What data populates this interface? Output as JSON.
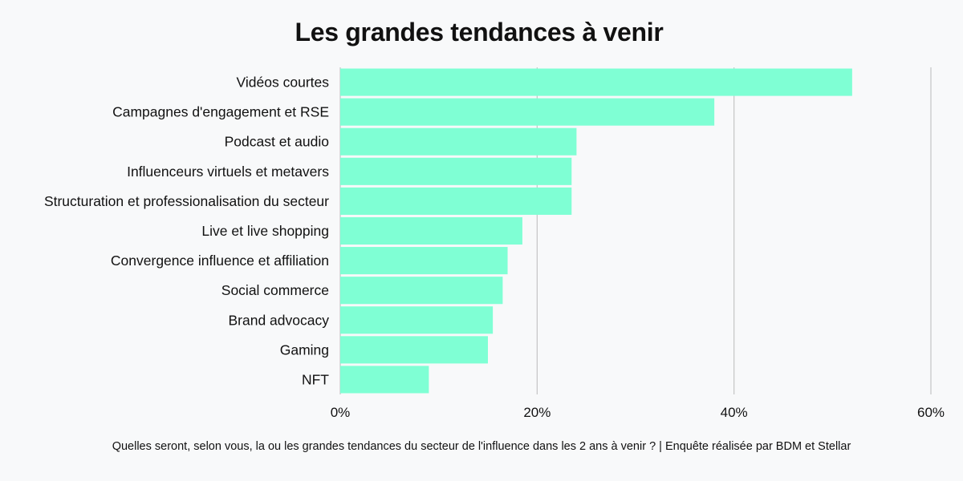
{
  "chart_data": {
    "type": "bar",
    "orientation": "horizontal",
    "title": "Les grandes tendances à venir",
    "footnote": "Quelles seront, selon vous, la ou les grandes tendances du secteur de l'influence dans les 2 ans à venir ? | Enquête réalisée par BDM et Stellar",
    "categories": [
      "Vidéos courtes",
      "Campagnes d'engagement et RSE",
      "Podcast et audio",
      "Influenceurs virtuels et metavers",
      "Structuration et professionalisation du secteur",
      "Live et live shopping",
      "Convergence influence et affiliation",
      "Social commerce",
      "Brand advocacy",
      "Gaming",
      "NFT"
    ],
    "values": [
      52,
      38,
      24,
      23.5,
      23.5,
      18.5,
      17,
      16.5,
      15.5,
      15,
      9
    ],
    "unit": "%",
    "xlim": [
      0,
      60
    ],
    "xticks": [
      0,
      20,
      40,
      60
    ],
    "xtick_labels": [
      "0%",
      "20%",
      "40%",
      "60%"
    ],
    "grid": true,
    "bar_color": "#7fffd4",
    "grid_color": "#c4c4c4"
  }
}
